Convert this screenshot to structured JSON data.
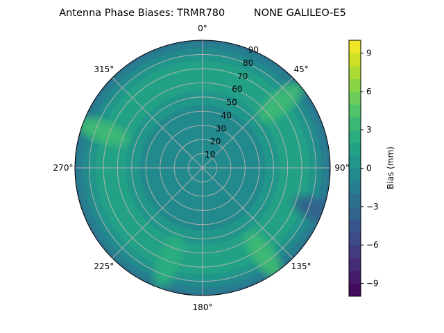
{
  "chart_data": {
    "type": "heatmap",
    "subtype": "polar-filled-contour",
    "title": "Antenna Phase Biases: TRMR780         NONE GALILEO-E5",
    "angular_ticks": [
      "0°",
      "45°",
      "90°",
      "135°",
      "180°",
      "225°",
      "270°",
      "315°"
    ],
    "radial_ticks": [
      "10",
      "20",
      "30",
      "40",
      "50",
      "60",
      "70",
      "80",
      "90"
    ],
    "radial_range": [
      0,
      90
    ],
    "grid": true,
    "colormap": "viridis",
    "colorbar": {
      "label": "Bias (mm)",
      "range": [
        -10,
        10
      ],
      "levels_step": 1,
      "ticks": [
        "−9",
        "−6",
        "−3",
        "0",
        "3",
        "6",
        "9"
      ],
      "tick_values": [
        -9,
        -6,
        -3,
        0,
        3,
        6,
        9
      ]
    },
    "radial_profile": {
      "zenith_deg": [
        0,
        10,
        20,
        30,
        40,
        50,
        60,
        70,
        80,
        90
      ],
      "bias_mm": [
        -1,
        -1,
        -1,
        -1,
        -0.5,
        0.5,
        1.5,
        2,
        0,
        -2.5
      ]
    },
    "hotspots": [
      {
        "azimuth_deg": 290,
        "zenith_deg": 75,
        "bias_mm": 3
      },
      {
        "azimuth_deg": 50,
        "zenith_deg": 72,
        "bias_mm": 3
      },
      {
        "azimuth_deg": 145,
        "zenith_deg": 75,
        "bias_mm": 3.5
      },
      {
        "azimuth_deg": 200,
        "zenith_deg": 70,
        "bias_mm": 2.5
      },
      {
        "azimuth_deg": 110,
        "zenith_deg": 88,
        "bias_mm": -4
      }
    ]
  }
}
